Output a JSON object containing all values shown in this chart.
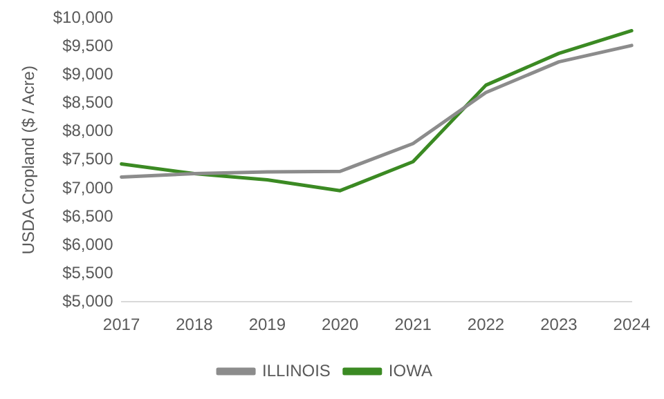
{
  "chart_data": {
    "type": "line",
    "ylabel": "USDA Cropland ($ / Acre)",
    "categories": [
      "2017",
      "2018",
      "2019",
      "2020",
      "2021",
      "2022",
      "2023",
      "2024"
    ],
    "series": [
      {
        "name": "ILLINOIS",
        "color": "#8c8c8c",
        "values": [
          7200,
          7260,
          7290,
          7300,
          7790,
          8690,
          9230,
          9520
        ]
      },
      {
        "name": "IOWA",
        "color": "#3b8a23",
        "values": [
          7430,
          7260,
          7150,
          6960,
          7470,
          8820,
          9380,
          9780
        ]
      }
    ],
    "ylim": [
      5000,
      10000
    ],
    "yticks": [
      {
        "value": 5000,
        "label": "$5,000"
      },
      {
        "value": 5500,
        "label": "$5,500"
      },
      {
        "value": 6000,
        "label": "$6,000"
      },
      {
        "value": 6500,
        "label": "$6,500"
      },
      {
        "value": 7000,
        "label": "$7,000"
      },
      {
        "value": 7500,
        "label": "$7,500"
      },
      {
        "value": 8000,
        "label": "$8,000"
      },
      {
        "value": 8500,
        "label": "$8,500"
      },
      {
        "value": 9000,
        "label": "$9,000"
      },
      {
        "value": 9500,
        "label": "$9,500"
      },
      {
        "value": 10000,
        "label": "$10,000"
      }
    ],
    "grid": false,
    "legend": "bottom",
    "marker": "none",
    "line_style": "solid"
  }
}
